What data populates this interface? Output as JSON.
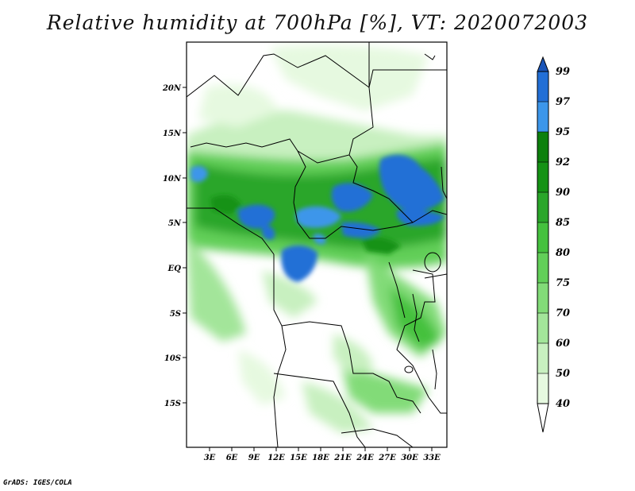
{
  "title": "Relative humidity at 700hPa [%], VT: 2020072003",
  "credit": "GrADS: IGES/COLA",
  "lat_ticks": [
    "20N",
    "15N",
    "10N",
    "5N",
    "EQ",
    "5S",
    "10S",
    "15S"
  ],
  "lon_ticks": [
    "3E",
    "6E",
    "9E",
    "12E",
    "15E",
    "18E",
    "21E",
    "24E",
    "27E",
    "30E",
    "33E"
  ],
  "colorbar": {
    "levels": [
      "40",
      "50",
      "60",
      "70",
      "75",
      "80",
      "85",
      "90",
      "92",
      "95",
      "97",
      "99"
    ],
    "colors": [
      "#ffffff",
      "#e6f9e0",
      "#c8f0c0",
      "#a3e59a",
      "#82db78",
      "#62cf59",
      "#45c13e",
      "#2aa62a",
      "#159215",
      "#0d800d",
      "#3c96ea",
      "#226fd6",
      "#1a55b8"
    ]
  },
  "map_data": {
    "lon_range": [
      0,
      35
    ],
    "lat_range": [
      -20,
      25
    ],
    "field": "relative humidity 700hPa",
    "units": "%"
  }
}
